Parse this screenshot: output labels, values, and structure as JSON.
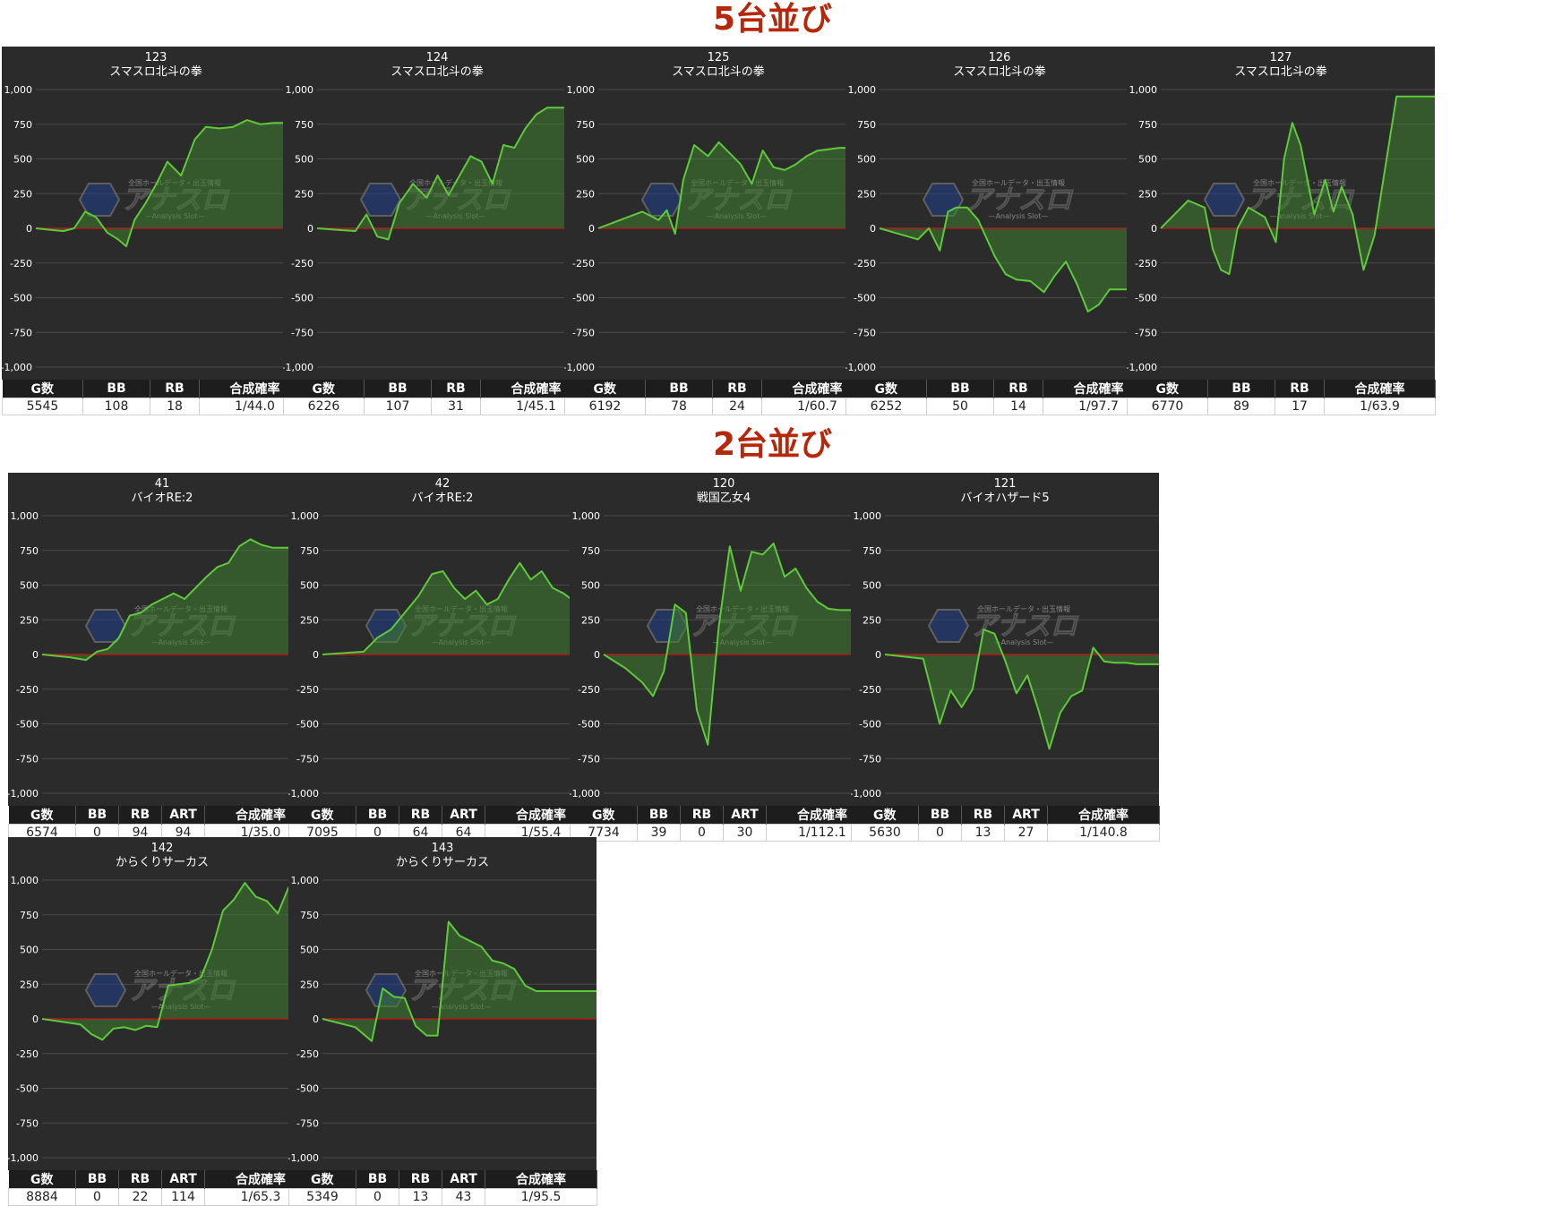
{
  "sections": [
    {
      "title": "5台並び"
    },
    {
      "title": "2台並び"
    }
  ],
  "watermark": {
    "main": "アナスロ",
    "sub": "—Analysis Slot—",
    "top": "全国ホールデータ・出玉情報"
  },
  "colors": {
    "panel_bg": "#2b2b2b",
    "grid": "#4a4a4a",
    "zero_line": "#b01c1c",
    "line": "#5ec93a",
    "fill": "#3e7f30",
    "title": "#b5280b"
  },
  "chart_data": [
    {
      "type": "area",
      "machine_no": "123",
      "model": "スマスロ北斗の拳",
      "ylim": [
        -1000,
        1000
      ],
      "yticks": [
        "1,000",
        "750",
        "500",
        "250",
        "0",
        "-250",
        "-500",
        "-750",
        "-1,000"
      ],
      "x": [
        0,
        5,
        10,
        14,
        18,
        22,
        26,
        30,
        33,
        36,
        40,
        44,
        48,
        53,
        58,
        62,
        67,
        72,
        77,
        82,
        87,
        92,
        100
      ],
      "values": [
        0,
        -10,
        -20,
        0,
        120,
        80,
        -30,
        -80,
        -130,
        60,
        180,
        320,
        480,
        380,
        640,
        730,
        720,
        730,
        780,
        750,
        760,
        760,
        760
      ],
      "stats_headers": [
        "G数",
        "BB",
        "RB",
        "合成確率"
      ],
      "stats": [
        "5545",
        "108",
        "18",
        "1/44.0"
      ]
    },
    {
      "type": "area",
      "machine_no": "124",
      "model": "スマスロ北斗の拳",
      "ylim": [
        -1000,
        1000
      ],
      "yticks": [
        "1,000",
        "750",
        "500",
        "250",
        "0",
        "-250",
        "-500",
        "-750",
        "-1,000"
      ],
      "x": [
        0,
        7,
        14,
        18,
        22,
        26,
        30,
        35,
        40,
        44,
        48,
        52,
        56,
        60,
        64,
        68,
        72,
        76,
        80,
        84,
        88,
        92,
        96,
        100
      ],
      "values": [
        0,
        -10,
        -20,
        100,
        -60,
        -80,
        180,
        320,
        220,
        380,
        240,
        380,
        520,
        480,
        320,
        600,
        580,
        720,
        820,
        870,
        870,
        870,
        870,
        870
      ],
      "stats_headers": [
        "G数",
        "BB",
        "RB",
        "合成確率"
      ],
      "stats": [
        "6226",
        "107",
        "31",
        "1/45.1"
      ]
    },
    {
      "type": "area",
      "machine_no": "125",
      "model": "スマスロ北斗の拳",
      "ylim": [
        -1000,
        1000
      ],
      "yticks": [
        "1,000",
        "750",
        "500",
        "250",
        "0",
        "-250",
        "-500",
        "-750",
        "-1,000"
      ],
      "x": [
        0,
        8,
        16,
        22,
        25,
        28,
        31,
        35,
        40,
        44,
        48,
        52,
        56,
        60,
        64,
        68,
        72,
        76,
        80,
        84,
        88,
        92,
        96,
        100
      ],
      "values": [
        0,
        60,
        120,
        60,
        130,
        -40,
        350,
        600,
        520,
        620,
        540,
        460,
        320,
        560,
        440,
        420,
        460,
        520,
        560,
        570,
        580,
        580,
        580,
        580
      ],
      "stats_headers": [
        "G数",
        "BB",
        "RB",
        "合成確率"
      ],
      "stats": [
        "6192",
        "78",
        "24",
        "1/60.7"
      ]
    },
    {
      "type": "area",
      "machine_no": "126",
      "model": "スマスロ北斗の拳",
      "ylim": [
        -1000,
        1000
      ],
      "yticks": [
        "1,000",
        "750",
        "500",
        "250",
        "0",
        "-250",
        "-500",
        "-750",
        "-1,000"
      ],
      "x": [
        0,
        7,
        14,
        18,
        22,
        25,
        28,
        32,
        36,
        42,
        46,
        50,
        55,
        60,
        64,
        68,
        72,
        76,
        80,
        84,
        88,
        92,
        100
      ],
      "values": [
        0,
        -40,
        -80,
        0,
        -160,
        120,
        150,
        150,
        60,
        -200,
        -330,
        -370,
        -380,
        -460,
        -340,
        -240,
        -400,
        -600,
        -550,
        -440,
        -440,
        -440,
        -440
      ],
      "stats_headers": [
        "G数",
        "BB",
        "RB",
        "合成確率"
      ],
      "stats": [
        "6252",
        "50",
        "14",
        "1/97.7"
      ]
    },
    {
      "type": "area",
      "machine_no": "127",
      "model": "スマスロ北斗の拳",
      "ylim": [
        -1000,
        1000
      ],
      "yticks": [
        "1,000",
        "750",
        "500",
        "250",
        "0",
        "-250",
        "-500",
        "-750",
        "-1,000"
      ],
      "x": [
        0,
        10,
        16,
        19,
        22,
        25,
        28,
        32,
        38,
        42,
        45,
        48,
        51,
        56,
        60,
        63,
        66,
        70,
        74,
        78,
        82,
        86,
        90,
        100
      ],
      "values": [
        0,
        200,
        150,
        -150,
        -300,
        -330,
        0,
        150,
        80,
        -100,
        500,
        760,
        600,
        100,
        350,
        120,
        300,
        100,
        -300,
        -50,
        450,
        950,
        950,
        950
      ],
      "stats_headers": [
        "G数",
        "BB",
        "RB",
        "合成確率"
      ],
      "stats": [
        "6770",
        "89",
        "17",
        "1/63.9"
      ]
    },
    {
      "type": "area",
      "machine_no": "41",
      "model": "バイオRE:2",
      "ylim": [
        -1000,
        1000
      ],
      "yticks": [
        "1,000",
        "750",
        "500",
        "250",
        "0",
        "-250",
        "-500",
        "-750",
        "-1,000"
      ],
      "x": [
        0,
        10,
        16,
        20,
        24,
        28,
        32,
        36,
        40,
        44,
        48,
        52,
        56,
        60,
        64,
        68,
        72,
        76,
        80,
        84,
        88,
        92,
        100
      ],
      "values": [
        0,
        -20,
        -40,
        20,
        40,
        120,
        280,
        300,
        360,
        400,
        440,
        400,
        480,
        560,
        630,
        660,
        780,
        830,
        790,
        770,
        770,
        770,
        770
      ],
      "stats_headers": [
        "G数",
        "BB",
        "RB",
        "ART",
        "合成確率"
      ],
      "stats": [
        "6574",
        "0",
        "94",
        "94",
        "1/35.0"
      ]
    },
    {
      "type": "area",
      "machine_no": "42",
      "model": "バイオRE:2",
      "ylim": [
        -1000,
        1000
      ],
      "yticks": [
        "1,000",
        "750",
        "500",
        "250",
        "0",
        "-250",
        "-500",
        "-750",
        "-1,000"
      ],
      "x": [
        0,
        15,
        20,
        25,
        30,
        35,
        40,
        44,
        48,
        52,
        56,
        60,
        64,
        68,
        72,
        76,
        80,
        84,
        88,
        92,
        96,
        100
      ],
      "values": [
        0,
        20,
        120,
        180,
        300,
        420,
        580,
        600,
        480,
        400,
        460,
        360,
        400,
        540,
        660,
        540,
        600,
        480,
        440,
        380,
        420,
        420
      ],
      "stats_headers": [
        "G数",
        "BB",
        "RB",
        "ART",
        "合成確率"
      ],
      "stats": [
        "7095",
        "0",
        "64",
        "64",
        "1/55.4"
      ]
    },
    {
      "type": "area",
      "machine_no": "120",
      "model": "戦国乙女4",
      "ylim": [
        -1000,
        1000
      ],
      "yticks": [
        "1,000",
        "750",
        "500",
        "250",
        "0",
        "-250",
        "-500",
        "-750",
        "-1,000"
      ],
      "x": [
        0,
        8,
        14,
        18,
        22,
        26,
        30,
        34,
        38,
        42,
        46,
        50,
        54,
        58,
        62,
        66,
        70,
        74,
        78,
        82,
        86,
        90,
        100
      ],
      "values": [
        0,
        -100,
        -200,
        -300,
        -120,
        360,
        300,
        -400,
        -650,
        200,
        780,
        460,
        740,
        720,
        800,
        560,
        620,
        480,
        380,
        330,
        320,
        320,
        320
      ],
      "stats_headers": [
        "G数",
        "BB",
        "RB",
        "ART",
        "合成確率"
      ],
      "stats": [
        "7734",
        "39",
        "0",
        "30",
        "1/112.1"
      ]
    },
    {
      "type": "area",
      "machine_no": "121",
      "model": "バイオハザード5",
      "ylim": [
        -1000,
        1000
      ],
      "yticks": [
        "1,000",
        "750",
        "500",
        "250",
        "0",
        "-250",
        "-500",
        "-750",
        "-1,000"
      ],
      "x": [
        0,
        14,
        20,
        24,
        28,
        32,
        36,
        40,
        44,
        48,
        52,
        56,
        60,
        64,
        68,
        72,
        76,
        80,
        84,
        88,
        92,
        96,
        100
      ],
      "values": [
        0,
        -30,
        -500,
        -260,
        -380,
        -250,
        180,
        150,
        -50,
        -280,
        -150,
        -400,
        -680,
        -420,
        -300,
        -260,
        50,
        -50,
        -60,
        -60,
        -70,
        -70,
        -70
      ],
      "stats_headers": [
        "G数",
        "BB",
        "RB",
        "ART",
        "合成確率"
      ],
      "stats": [
        "5630",
        "0",
        "13",
        "27",
        "1/140.8"
      ]
    },
    {
      "type": "area",
      "machine_no": "142",
      "model": "からくりサーカス",
      "ylim": [
        -1000,
        1000
      ],
      "yticks": [
        "1,000",
        "750",
        "500",
        "250",
        "0",
        "-250",
        "-500",
        "-750",
        "-1,000"
      ],
      "x": [
        0,
        14,
        18,
        22,
        26,
        30,
        34,
        38,
        42,
        46,
        50,
        54,
        58,
        62,
        66,
        70,
        74,
        78,
        82,
        86,
        90,
        100
      ],
      "values": [
        0,
        -40,
        -110,
        -150,
        -70,
        -60,
        -80,
        -50,
        -60,
        240,
        250,
        260,
        300,
        500,
        780,
        860,
        980,
        880,
        850,
        760,
        950,
        950
      ],
      "stats_headers": [
        "G数",
        "BB",
        "RB",
        "ART",
        "合成確率"
      ],
      "stats": [
        "8884",
        "0",
        "22",
        "114",
        "1/65.3"
      ]
    },
    {
      "type": "area",
      "machine_no": "143",
      "model": "からくりサーカス",
      "ylim": [
        -1000,
        1000
      ],
      "yticks": [
        "1,000",
        "750",
        "500",
        "250",
        "0",
        "-250",
        "-500",
        "-750",
        "-1,000"
      ],
      "x": [
        0,
        12,
        18,
        22,
        26,
        30,
        34,
        38,
        42,
        46,
        50,
        54,
        58,
        62,
        66,
        70,
        74,
        78,
        82,
        100
      ],
      "values": [
        0,
        -60,
        -160,
        220,
        160,
        150,
        -50,
        -120,
        -120,
        700,
        600,
        560,
        520,
        420,
        400,
        360,
        240,
        200,
        200,
        200
      ],
      "stats_headers": [
        "G数",
        "BB",
        "RB",
        "ART",
        "合成確率"
      ],
      "stats": [
        "5349",
        "0",
        "13",
        "43",
        "1/95.5"
      ]
    }
  ]
}
